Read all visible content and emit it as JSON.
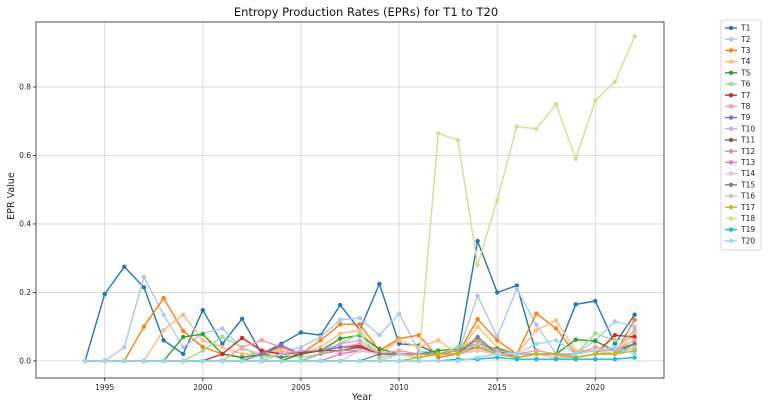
{
  "chart_data": {
    "type": "line",
    "title": "Entropy Production Rates (EPRs) for T1 to T20",
    "xlabel": "Year",
    "ylabel": "EPR Value",
    "xlim": [
      1991.5,
      2023.5
    ],
    "ylim": [
      -0.05,
      0.99
    ],
    "xticks": [
      1995,
      2000,
      2005,
      2010,
      2015,
      2020
    ],
    "yticks": [
      0.0,
      0.2,
      0.4,
      0.6,
      0.8
    ],
    "grid": true,
    "legend_position": "outside-right",
    "x": [
      1994,
      1995,
      1996,
      1997,
      1998,
      1999,
      2000,
      2001,
      2002,
      2003,
      2004,
      2005,
      2006,
      2007,
      2008,
      2009,
      2010,
      2011,
      2012,
      2013,
      2014,
      2015,
      2016,
      2017,
      2018,
      2019,
      2020,
      2021,
      2022
    ],
    "series": [
      {
        "name": "T1",
        "color": "#1f77b4",
        "values": [
          0,
          0.195,
          0.275,
          0.215,
          0.06,
          0.02,
          0.148,
          0.05,
          0.123,
          0.02,
          0.05,
          0.083,
          0.075,
          0.163,
          0.09,
          0.225,
          0.05,
          0.045,
          0.02,
          0.02,
          0.35,
          0.2,
          0.22,
          0.02,
          0.02,
          0.165,
          0.175,
          0.05,
          0.135
        ]
      },
      {
        "name": "T2",
        "color": "#aec7e8",
        "values": [
          0,
          0,
          0.04,
          0.245,
          0.135,
          0.04,
          0.08,
          0.095,
          0.035,
          0.02,
          0.025,
          0.04,
          0.07,
          0.12,
          0.125,
          0.075,
          0.138,
          0.03,
          0.02,
          0.02,
          0.19,
          0.07,
          0.21,
          0.105,
          0.02,
          0.02,
          0.06,
          0.115,
          0.1
        ]
      },
      {
        "name": "T3",
        "color": "#ff7f0e",
        "values": [
          0,
          0,
          0,
          0.1,
          0.183,
          0.087,
          0.04,
          0.02,
          0.01,
          0.02,
          0.04,
          0.02,
          0.06,
          0.107,
          0.107,
          0.03,
          0.065,
          0.075,
          0.01,
          0.02,
          0.122,
          0.06,
          0.02,
          0.138,
          0.095,
          0.02,
          0.03,
          0.02,
          0.12
        ]
      },
      {
        "name": "T4",
        "color": "#ffbb78",
        "values": [
          0,
          0,
          0,
          0,
          0.09,
          0.135,
          0.06,
          0.04,
          0.02,
          0.02,
          0.03,
          0.02,
          0.04,
          0.08,
          0.09,
          0.02,
          0.06,
          0.04,
          0.06,
          0.02,
          0.1,
          0.04,
          0.02,
          0.09,
          0.118,
          0.03,
          0.03,
          0.02,
          0.08
        ]
      },
      {
        "name": "T5",
        "color": "#2ca02c",
        "values": [
          0,
          0,
          0,
          0,
          0,
          0.07,
          0.078,
          0.02,
          0.01,
          0.02,
          0.01,
          0.02,
          0.03,
          0.065,
          0.075,
          0.035,
          0.02,
          0.02,
          0.03,
          0.035,
          0.05,
          0.035,
          0.02,
          0.02,
          0.02,
          0.062,
          0.058,
          0.03,
          0.05
        ]
      },
      {
        "name": "T6",
        "color": "#98df8a",
        "values": [
          0,
          0,
          0,
          0,
          0,
          0,
          0.03,
          0.07,
          0.04,
          0.01,
          0.02,
          0.01,
          0.02,
          0.05,
          0.08,
          0.01,
          0.02,
          0.01,
          0.02,
          0.04,
          0.06,
          0.03,
          0.01,
          0.02,
          0.01,
          0.02,
          0.08,
          0.06,
          0.07
        ]
      },
      {
        "name": "T7",
        "color": "#d62728",
        "values": [
          0,
          0,
          0,
          0,
          0,
          0,
          0,
          0.02,
          0.067,
          0.03,
          0.02,
          0.025,
          0.03,
          0.04,
          0.045,
          0.02,
          0.02,
          0.02,
          0.02,
          0.03,
          0.04,
          0.03,
          0.01,
          0.02,
          0.02,
          0.01,
          0.02,
          0.075,
          0.07
        ]
      },
      {
        "name": "T8",
        "color": "#ff9896",
        "values": [
          0,
          0,
          0,
          0,
          0,
          0,
          0,
          0,
          0.04,
          0.06,
          0.04,
          0.02,
          0.03,
          0.04,
          0.05,
          0.02,
          0.03,
          0.02,
          0.02,
          0.03,
          0.05,
          0.03,
          0.02,
          0.03,
          0.02,
          0.02,
          0.04,
          0.03,
          0.06
        ]
      },
      {
        "name": "T9",
        "color": "#9467bd",
        "values": [
          0,
          0,
          0,
          0,
          0,
          0,
          0,
          0,
          0,
          0.02,
          0.045,
          0.02,
          0.03,
          0.04,
          0.04,
          0.02,
          0.02,
          0.01,
          0.02,
          0.02,
          0.04,
          0.02,
          0.01,
          0.02,
          0.02,
          0.01,
          0.02,
          0.02,
          0.04
        ]
      },
      {
        "name": "T10",
        "color": "#c5b0d5",
        "values": [
          0,
          0,
          0,
          0,
          0,
          0,
          0,
          0,
          0,
          0,
          0.02,
          0.03,
          0.03,
          0.05,
          0.06,
          0.02,
          0.02,
          0.02,
          0.02,
          0.03,
          0.04,
          0.03,
          0.02,
          0.02,
          0.02,
          0.02,
          0.03,
          0.03,
          0.09
        ]
      },
      {
        "name": "T11",
        "color": "#8c564b",
        "values": [
          0,
          0,
          0,
          0,
          0,
          0,
          0,
          0,
          0,
          0,
          0,
          0.02,
          0.03,
          0.03,
          0.04,
          0.02,
          0.02,
          0.02,
          0.02,
          0.03,
          0.04,
          0.02,
          0.01,
          0.02,
          0.02,
          0.01,
          0.02,
          0.02,
          0.03
        ]
      },
      {
        "name": "T12",
        "color": "#c49c94",
        "values": [
          0,
          0,
          0,
          0,
          0,
          0,
          0,
          0,
          0,
          0,
          0,
          0,
          0.02,
          0.03,
          0.03,
          0.02,
          0.02,
          0.02,
          0.02,
          0.03,
          0.06,
          0.02,
          0.01,
          0.02,
          0.02,
          0.01,
          0.02,
          0.02,
          0.04
        ]
      },
      {
        "name": "T13",
        "color": "#e377c2",
        "values": [
          0,
          0,
          0,
          0,
          0,
          0,
          0,
          0,
          0,
          0,
          0,
          0,
          0,
          0.02,
          0.03,
          0.02,
          0.02,
          0.01,
          0.02,
          0.02,
          0.03,
          0.02,
          0.01,
          0.02,
          0.02,
          0.01,
          0.02,
          0.02,
          0.03
        ]
      },
      {
        "name": "T14",
        "color": "#f7b6d2",
        "values": [
          0,
          0,
          0,
          0,
          0,
          0,
          0,
          0,
          0,
          0,
          0,
          0,
          0,
          0,
          0.03,
          0.02,
          0.02,
          0.01,
          0.02,
          0.02,
          0.03,
          0.02,
          0.01,
          0.02,
          0.01,
          0.01,
          0.02,
          0.02,
          0.03
        ]
      },
      {
        "name": "T15",
        "color": "#7f7f7f",
        "values": [
          0,
          0,
          0,
          0,
          0,
          0,
          0,
          0,
          0,
          0,
          0,
          0,
          0,
          0,
          0,
          0.02,
          0.02,
          0.01,
          0.02,
          0.02,
          0.07,
          0.02,
          0.01,
          0.02,
          0.02,
          0.01,
          0.02,
          0.02,
          0.05
        ]
      },
      {
        "name": "T16",
        "color": "#c7c7c7",
        "values": [
          0,
          0,
          0,
          0,
          0,
          0,
          0,
          0,
          0,
          0,
          0,
          0,
          0,
          0,
          0,
          0,
          0.02,
          0.01,
          0.02,
          0.02,
          0.05,
          0.02,
          0.01,
          0.02,
          0.02,
          0.01,
          0.02,
          0.02,
          0.04
        ]
      },
      {
        "name": "T17",
        "color": "#bcbd22",
        "values": [
          0,
          0,
          0,
          0,
          0,
          0,
          0,
          0,
          0,
          0,
          0,
          0,
          0,
          0,
          0,
          0,
          0,
          0.01,
          0.02,
          0.02,
          0.04,
          0.02,
          0.01,
          0.02,
          0.02,
          0.01,
          0.02,
          0.02,
          0.03
        ]
      },
      {
        "name": "T18",
        "color": "#dbdb8d",
        "values": [
          0,
          0,
          0,
          0,
          0,
          0,
          0,
          0,
          0,
          0,
          0,
          0,
          0,
          0,
          0,
          0,
          0,
          0,
          0.665,
          0.645,
          0.28,
          0.47,
          0.685,
          0.678,
          0.75,
          0.59,
          0.76,
          0.815,
          0.948
        ]
      },
      {
        "name": "T19",
        "color": "#17becf",
        "values": [
          0,
          0,
          0,
          0,
          0,
          0,
          0,
          0,
          0,
          0,
          0,
          0,
          0,
          0,
          0,
          0,
          0,
          0,
          0,
          0.005,
          0.005,
          0.01,
          0.005,
          0.005,
          0.005,
          0.005,
          0.005,
          0.005,
          0.01
        ]
      },
      {
        "name": "T20",
        "color": "#9edae5",
        "values": [
          0,
          0,
          0,
          0,
          0,
          0,
          0,
          0,
          0,
          0,
          0,
          0,
          0,
          0,
          0,
          0,
          0,
          0,
          0,
          0,
          0.01,
          0.02,
          0.02,
          0.05,
          0.06,
          0.02,
          0.03,
          0.04,
          0.02
        ]
      }
    ]
  }
}
